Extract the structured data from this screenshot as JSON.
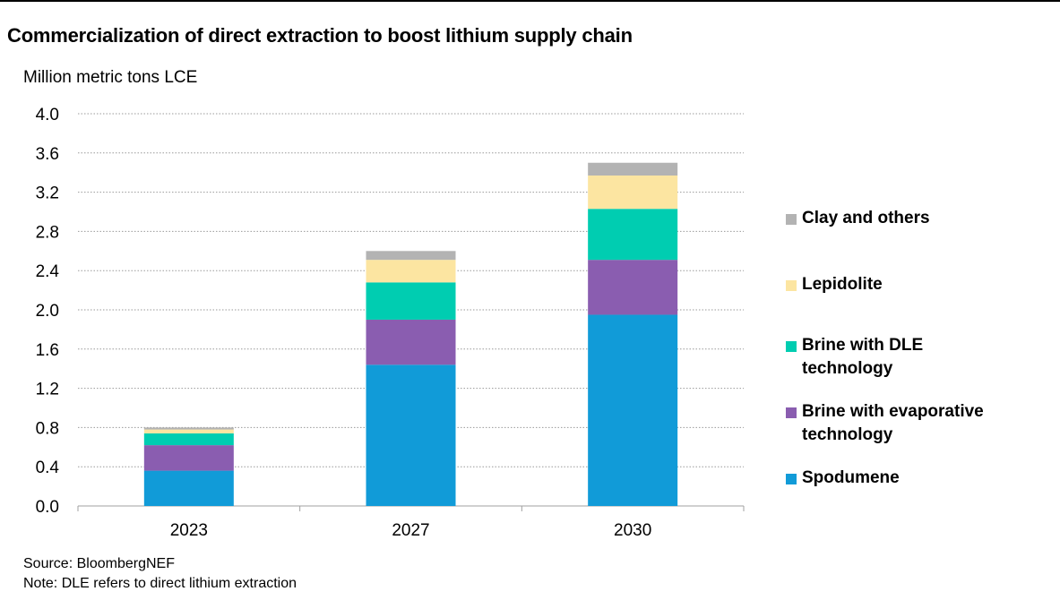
{
  "title": "Commercialization of direct extraction to boost lithium supply chain",
  "unit_label": "Million metric tons LCE",
  "source": "Source: BloombergNEF",
  "note": "Note: DLE refers to direct lithium extraction",
  "chart_data": {
    "type": "bar",
    "stacked": true,
    "categories": [
      "2023",
      "2027",
      "2030"
    ],
    "ylim": [
      0,
      4.0
    ],
    "yticks": [
      "0.0",
      "0.4",
      "0.8",
      "1.2",
      "1.6",
      "2.0",
      "2.4",
      "2.8",
      "3.2",
      "3.6",
      "4.0"
    ],
    "ytick_values": [
      0,
      0.4,
      0.8,
      1.2,
      1.6,
      2.0,
      2.4,
      2.8,
      3.2,
      3.6,
      4.0
    ],
    "ylabel": "Million metric tons LCE",
    "xlabel": "",
    "grid": "horizontal dotted",
    "legend_position": "right",
    "series": [
      {
        "name": "Spodumene",
        "color": "#119bd8",
        "values": [
          0.36,
          1.44,
          1.95
        ]
      },
      {
        "name": "Brine with evaporative technology",
        "color": "#8a5db0",
        "values": [
          0.26,
          0.46,
          0.56
        ]
      },
      {
        "name": "Brine with DLE technology",
        "color": "#00cdb1",
        "values": [
          0.12,
          0.38,
          0.52
        ]
      },
      {
        "name": "Lepidolite",
        "color": "#fce5a1",
        "values": [
          0.04,
          0.23,
          0.34
        ]
      },
      {
        "name": "Clay and others",
        "color": "#b3b3b3",
        "values": [
          0.02,
          0.09,
          0.13
        ]
      }
    ]
  }
}
